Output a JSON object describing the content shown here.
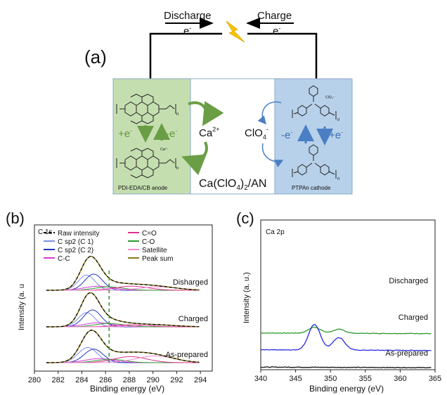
{
  "panel_a": {
    "label": "(a)",
    "discharge_label": "Discharge",
    "charge_label": "Charge",
    "electron_left": "e",
    "electron_right": "e",
    "electron_sup": "-",
    "anode_label": "PDI-EDA/CB anode",
    "cathode_label": "PTPAn cathode",
    "anode_plus_e": "+e",
    "anode_minus_e": "-e",
    "cathode_minus_e": "-e",
    "cathode_plus_e": "+e",
    "sup_minus": "-",
    "cation_base": "Ca",
    "cation_charge": "2+",
    "anion_base": "ClO",
    "anion_sub": "4",
    "anion_charge": "-",
    "electrolyte_a": "Ca(ClO",
    "electrolyte_sub": "4",
    "electrolyte_b": ")",
    "electrolyte_sub2": "2",
    "electrolyte_c": "/AN",
    "struct_text_perchlorate": "ClO₄⁻",
    "struct_text_ca": "Ca²⁺",
    "struct_text_n": "n",
    "colors": {
      "anode_bg": "#c5deb0",
      "cathode_bg": "#b8d1ea",
      "green_arrow": "#6a9e45",
      "blue_arrow": "#4a7fc4",
      "bolt": "#f5c400"
    }
  },
  "panel_b": {
    "label": "(b)",
    "chart_data": {
      "type": "line",
      "title": "C 1s",
      "xlabel": "Binding energy (eV)",
      "ylabel": "Intensity (a. u",
      "xlim": [
        280,
        295
      ],
      "xticks": [
        280,
        282,
        284,
        286,
        288,
        290,
        292,
        294
      ],
      "x_reversed": false,
      "dashed_vline_x": 286.3,
      "legend": [
        {
          "name": "Raw intensity",
          "color": "#000000",
          "style": "dashed"
        },
        {
          "name": "C sp2 (C 1)",
          "color": "#7c8fe6",
          "style": "solid"
        },
        {
          "name": "C sp2 (C 2)",
          "color": "#2235b8",
          "style": "solid"
        },
        {
          "name": "C-C",
          "color": "#d43ad4",
          "style": "solid"
        },
        {
          "name": "C=O",
          "color": "#e0308f",
          "style": "solid"
        },
        {
          "name": "C-O",
          "color": "#2e9a2e",
          "style": "solid"
        },
        {
          "name": "Satellite",
          "color": "#f08ad8",
          "style": "solid"
        },
        {
          "name": "Peak sum",
          "color": "#8a7a1a",
          "style": "solid"
        }
      ],
      "spectra": [
        {
          "name": "Disharged",
          "components": {
            "c1": [
              284.4,
              0.45,
              0.7
            ],
            "c2": [
              285.0,
              0.48,
              0.75
            ],
            "cc": [
              285.4,
              0.12,
              1.2
            ],
            "co": [
              286.3,
              0.1,
              1.2
            ],
            "ceo": [
              288.2,
              0.12,
              1.4
            ],
            "sat": [
              290.5,
              0.1,
              1.6
            ]
          }
        },
        {
          "name": "Charged",
          "components": {
            "c1": [
              284.4,
              0.42,
              0.7
            ],
            "c2": [
              284.9,
              0.5,
              0.75
            ],
            "cc": [
              285.4,
              0.12,
              1.2
            ],
            "co": [
              286.3,
              0.1,
              1.2
            ],
            "ceo": [
              288.1,
              0.06,
              1.4
            ],
            "sat": [
              290.5,
              0.05,
              1.6
            ]
          }
        },
        {
          "name": "As-prepared",
          "components": {
            "c1": [
              284.5,
              0.45,
              0.8
            ],
            "c2": [
              285.0,
              0.4,
              0.8
            ],
            "cc": [
              285.5,
              0.12,
              1.2
            ],
            "co": [
              286.4,
              0.1,
              1.2
            ],
            "ceo": [
              288.1,
              0.18,
              1.4
            ],
            "sat": [
              290.2,
              0.2,
              1.6
            ]
          }
        }
      ]
    }
  },
  "panel_c": {
    "label": "(c)",
    "chart_data": {
      "type": "line",
      "title": "Ca 2p",
      "xlabel": "Binding energy (eV)",
      "ylabel": "Intensity (a. u.)",
      "xlim": [
        340,
        365
      ],
      "xticks": [
        340,
        345,
        350,
        355,
        360,
        365
      ],
      "series": [
        {
          "name": "Discharged",
          "color": "#2e9a2e",
          "peaks": [
            [
              347.7,
              0.2
            ],
            [
              351.2,
              0.13
            ]
          ],
          "offset": 0.98
        },
        {
          "name": "Charged",
          "color": "#2a2ae0",
          "peaks": [
            [
              347.7,
              0.85
            ],
            [
              351.2,
              0.42
            ]
          ],
          "offset": 0.53
        },
        {
          "name": "As-prepared",
          "color": "#111111",
          "peaks": [],
          "offset": 0.07
        }
      ]
    }
  }
}
